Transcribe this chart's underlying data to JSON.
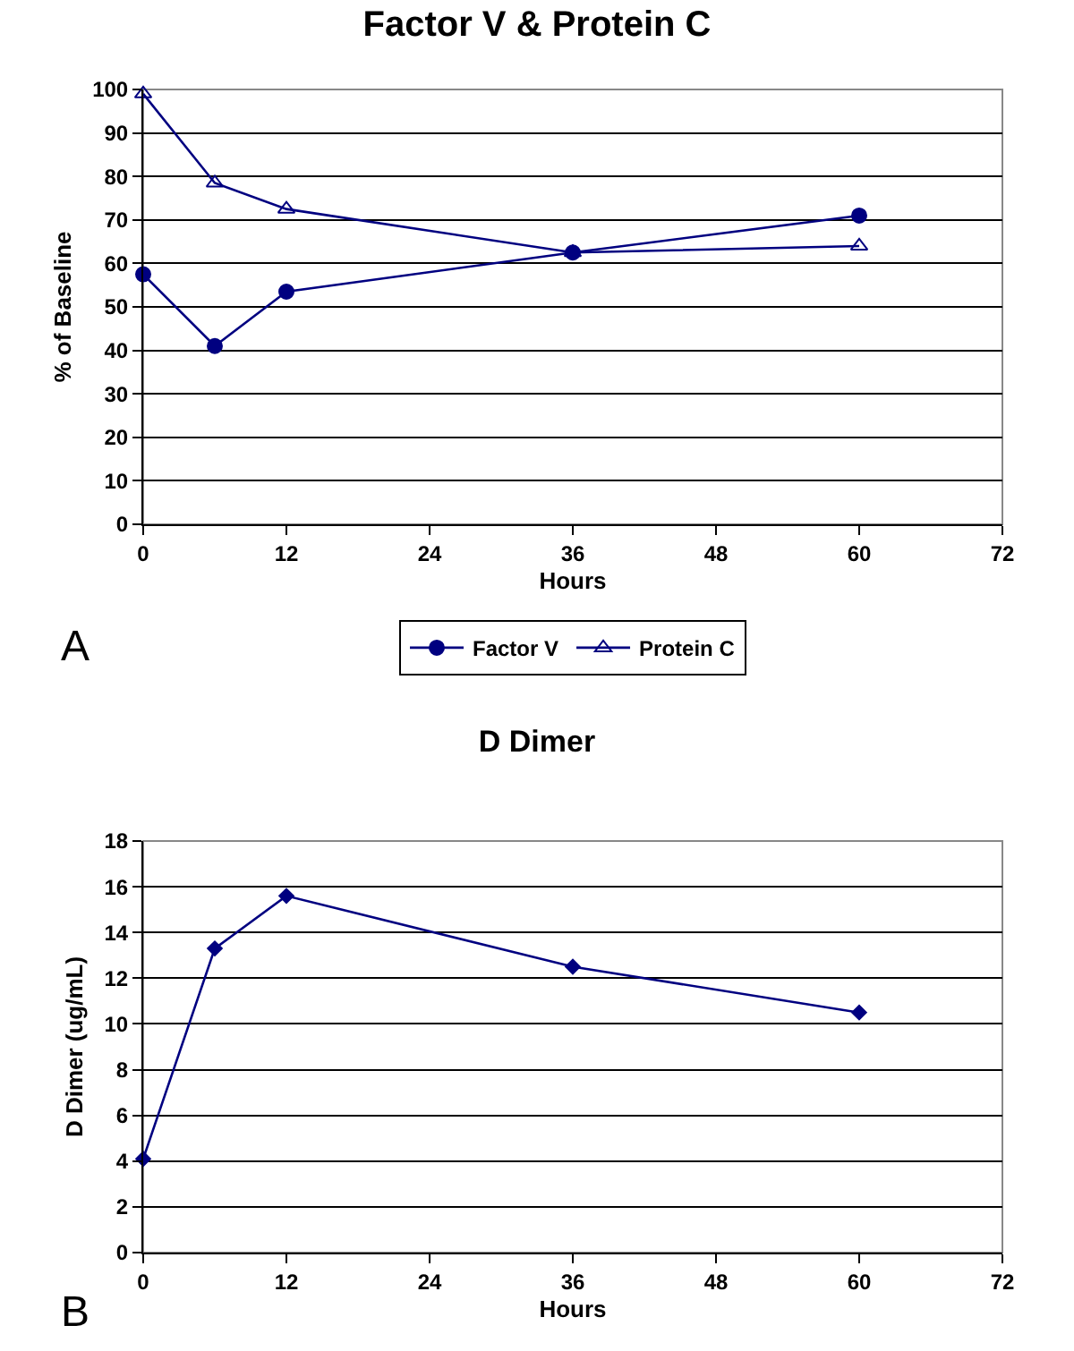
{
  "chart_data": [
    {
      "type": "line",
      "title": "Factor V & Protein C",
      "xlabel": "Hours",
      "ylabel": "% of Baseline",
      "annotations": [
        "A"
      ],
      "x": [
        0,
        6,
        12,
        36,
        60
      ],
      "xlim": [
        0,
        72
      ],
      "xticks": [
        0,
        12,
        24,
        36,
        48,
        60,
        72
      ],
      "ylim": [
        0,
        100
      ],
      "yticks": [
        0,
        10,
        20,
        30,
        40,
        50,
        60,
        70,
        80,
        90,
        100
      ],
      "grid": "y",
      "legend": "bottom",
      "line_style": "solid",
      "series": [
        {
          "name": "Factor V",
          "color": "#000080",
          "marker": "circle",
          "values": [
            57.5,
            41,
            53.5,
            62.5,
            71
          ]
        },
        {
          "name": "Protein C",
          "color": "#000080",
          "marker": "triangle",
          "values": [
            99,
            78.5,
            72.5,
            62.5,
            64
          ]
        }
      ]
    },
    {
      "type": "line",
      "title": "D Dimer",
      "xlabel": "Hours",
      "ylabel": "D Dimer (ug/mL)",
      "annotations": [
        "B"
      ],
      "x": [
        0,
        6,
        12,
        36,
        60
      ],
      "xlim": [
        0,
        72
      ],
      "xticks": [
        0,
        12,
        24,
        36,
        48,
        60,
        72
      ],
      "ylim": [
        0,
        18
      ],
      "yticks": [
        0,
        2,
        4,
        6,
        8,
        10,
        12,
        14,
        16,
        18
      ],
      "grid": "y",
      "legend": false,
      "line_style": "solid",
      "marker": "diamond",
      "series": [
        {
          "color": "#000080",
          "values": [
            4.1,
            13.3,
            15.6,
            12.5,
            10.5
          ]
        }
      ]
    }
  ]
}
